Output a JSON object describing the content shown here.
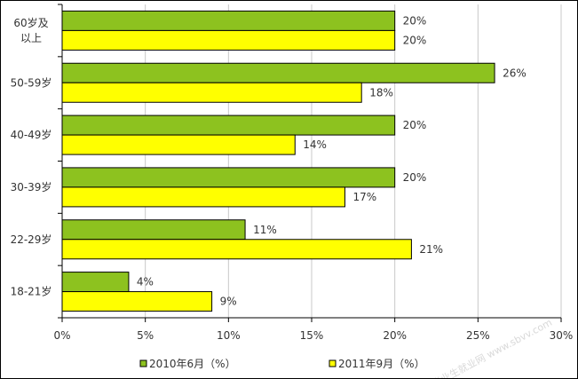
{
  "chart_data": {
    "type": "bar",
    "orientation": "horizontal",
    "categories": [
      "60岁及以上",
      "50-59岁",
      "40-49岁",
      "30-39岁",
      "22-29岁",
      "18-21岁"
    ],
    "category_lines": [
      [
        "60岁及",
        "以上"
      ],
      [
        "50-59岁"
      ],
      [
        "40-49岁"
      ],
      [
        "30-39岁"
      ],
      [
        "22-29岁"
      ],
      [
        "18-21岁"
      ]
    ],
    "series": [
      {
        "name": "2010年6月（%）",
        "values": [
          20,
          26,
          20,
          20,
          11,
          4
        ],
        "labels": [
          "20%",
          "26%",
          "20%",
          "20%",
          "11%",
          "4%"
        ],
        "color": "#8DC21F"
      },
      {
        "name": "2011年9月（%）",
        "values": [
          20,
          18,
          14,
          17,
          21,
          9
        ],
        "labels": [
          "20%",
          "18%",
          "14%",
          "17%",
          "21%",
          "9%"
        ],
        "color": "#FFFF00"
      }
    ],
    "xlim": [
      0,
      30
    ],
    "xticks": [
      0,
      5,
      10,
      15,
      20,
      25,
      30
    ],
    "xtick_labels": [
      "0%",
      "5%",
      "10%",
      "15%",
      "20%",
      "25%",
      "30%"
    ],
    "grid": "vertical",
    "legend": "bottom",
    "title": "",
    "xlabel": "",
    "ylabel": ""
  },
  "watermark": "毕业生就业网 www.sbvv.com"
}
